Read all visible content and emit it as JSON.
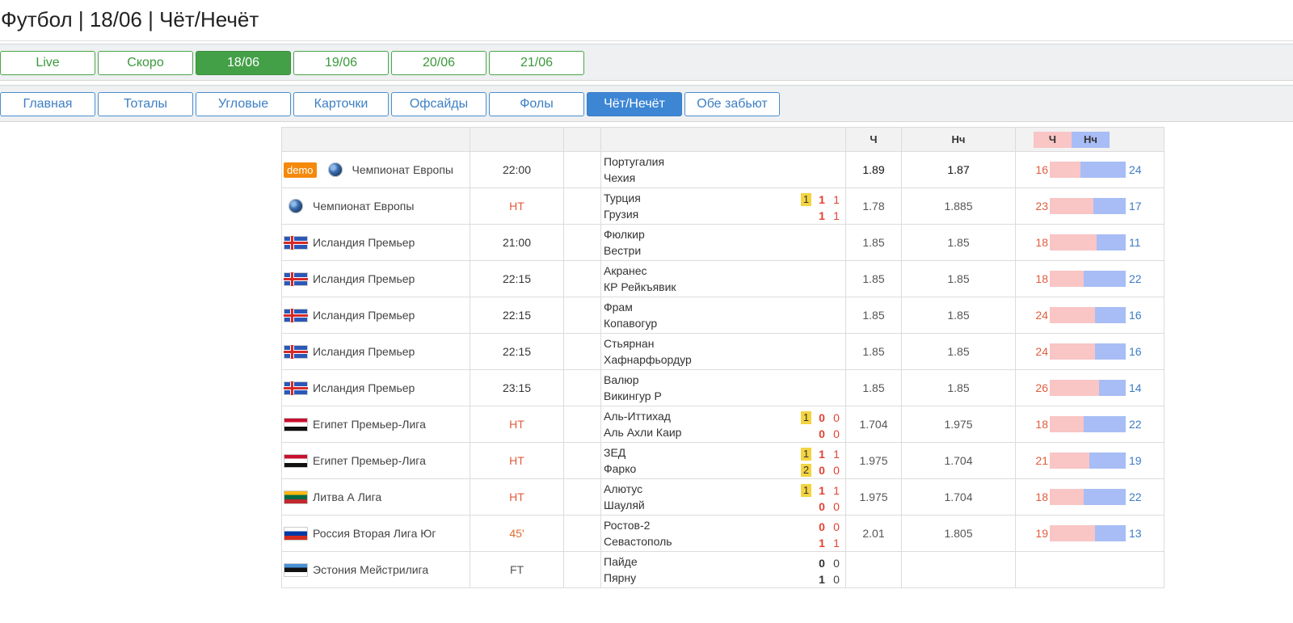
{
  "page": {
    "title": "Футбол | 18/06 | Чёт/Нечёт"
  },
  "date_tabs": [
    {
      "label": "Live",
      "active": false
    },
    {
      "label": "Скоро",
      "active": false
    },
    {
      "label": "18/06",
      "active": true
    },
    {
      "label": "19/06",
      "active": false
    },
    {
      "label": "20/06",
      "active": false
    },
    {
      "label": "21/06",
      "active": false
    }
  ],
  "section_tabs": [
    {
      "label": "Главная",
      "active": false
    },
    {
      "label": "Тоталы",
      "active": false
    },
    {
      "label": "Угловые",
      "active": false
    },
    {
      "label": "Карточки",
      "active": false
    },
    {
      "label": "Офсайды",
      "active": false
    },
    {
      "label": "Фолы",
      "active": false
    },
    {
      "label": "Чёт/Нечёт",
      "active": true
    },
    {
      "label": "Обе забьют",
      "active": false
    }
  ],
  "table": {
    "headers": {
      "even": "Ч",
      "odd": "Нч",
      "legend_even": "Ч",
      "legend_odd": "Нч"
    },
    "colors": {
      "even": "#f9c5c5",
      "odd": "#a8bdf5"
    },
    "rows": [
      {
        "demo": "demo",
        "flag": "globe",
        "league": "Чемпионат Европы",
        "time": "22:00",
        "status": "scheduled",
        "home": "Португалия",
        "away": "Чехия",
        "odd_even": "1.89",
        "odd_odd": "1.87",
        "pct_even": 16,
        "pct_odd": 24,
        "odds_dark": true
      },
      {
        "flag": "globe",
        "league": "Чемпионат Европы",
        "time": "HT",
        "status": "ht",
        "home": "Турция",
        "away": "Грузия",
        "home_red": "1",
        "home_goals": "1",
        "home_half": "1",
        "away_goals": "1",
        "away_half": "1",
        "odd_even": "1.78",
        "odd_odd": "1.885",
        "pct_even": 23,
        "pct_odd": 17
      },
      {
        "flag": "iceland",
        "league": "Исландия Премьер",
        "time": "21:00",
        "status": "scheduled",
        "home": "Фюлкир",
        "away": "Вестри",
        "odd_even": "1.85",
        "odd_odd": "1.85",
        "pct_even": 18,
        "pct_odd": 11
      },
      {
        "flag": "iceland",
        "league": "Исландия Премьер",
        "time": "22:15",
        "status": "scheduled",
        "home": "Акранес",
        "away": "КР Рейкъявик",
        "odd_even": "1.85",
        "odd_odd": "1.85",
        "pct_even": 18,
        "pct_odd": 22
      },
      {
        "flag": "iceland",
        "league": "Исландия Премьер",
        "time": "22:15",
        "status": "scheduled",
        "home": "Фрам",
        "away": "Копавогур",
        "odd_even": "1.85",
        "odd_odd": "1.85",
        "pct_even": 24,
        "pct_odd": 16
      },
      {
        "flag": "iceland",
        "league": "Исландия Премьер",
        "time": "22:15",
        "status": "scheduled",
        "home": "Стьярнан",
        "away": "Хафнарфьордур",
        "odd_even": "1.85",
        "odd_odd": "1.85",
        "pct_even": 24,
        "pct_odd": 16
      },
      {
        "flag": "iceland",
        "league": "Исландия Премьер",
        "time": "23:15",
        "status": "scheduled",
        "home": "Валюр",
        "away": "Викингур Р",
        "odd_even": "1.85",
        "odd_odd": "1.85",
        "pct_even": 26,
        "pct_odd": 14
      },
      {
        "flag": "egypt",
        "league": "Египет Премьер-Лига",
        "time": "HT",
        "status": "ht",
        "home": "Аль-Иттихад",
        "away": "Аль Ахли Каир",
        "home_red": "1",
        "home_goals": "0",
        "home_half": "0",
        "away_goals": "0",
        "away_half": "0",
        "odd_even": "1.704",
        "odd_odd": "1.975",
        "pct_even": 18,
        "pct_odd": 22
      },
      {
        "flag": "egypt",
        "league": "Египет Премьер-Лига",
        "time": "HT",
        "status": "ht",
        "home": "ЗЕД",
        "away": "Фарко",
        "home_red": "1",
        "away_red": "2",
        "home_goals": "1",
        "home_half": "1",
        "away_goals": "0",
        "away_half": "0",
        "odd_even": "1.975",
        "odd_odd": "1.704",
        "pct_even": 21,
        "pct_odd": 19
      },
      {
        "flag": "lithuania",
        "league": "Литва А Лига",
        "time": "HT",
        "status": "ht",
        "home": "Алютус",
        "away": "Шауляй",
        "home_red": "1",
        "home_goals": "1",
        "home_half": "1",
        "away_goals": "0",
        "away_half": "0",
        "odd_even": "1.975",
        "odd_odd": "1.704",
        "pct_even": 18,
        "pct_odd": 22
      },
      {
        "flag": "russia",
        "league": "Россия Вторая Лига Юг",
        "time": "45'",
        "status": "live",
        "home": "Ростов-2",
        "away": "Севастополь",
        "home_goals": "0",
        "home_half": "0",
        "away_goals": "1",
        "away_half": "1",
        "odd_even": "2.01",
        "odd_odd": "1.805",
        "pct_even": 19,
        "pct_odd": 13
      },
      {
        "flag": "estonia",
        "league": "Эстония Мейстрилига",
        "time": "FT",
        "status": "ft",
        "home": "Пайде",
        "away": "Пярну",
        "home_goals": "0",
        "home_half": "0",
        "away_goals": "1",
        "away_half": "0"
      }
    ]
  }
}
